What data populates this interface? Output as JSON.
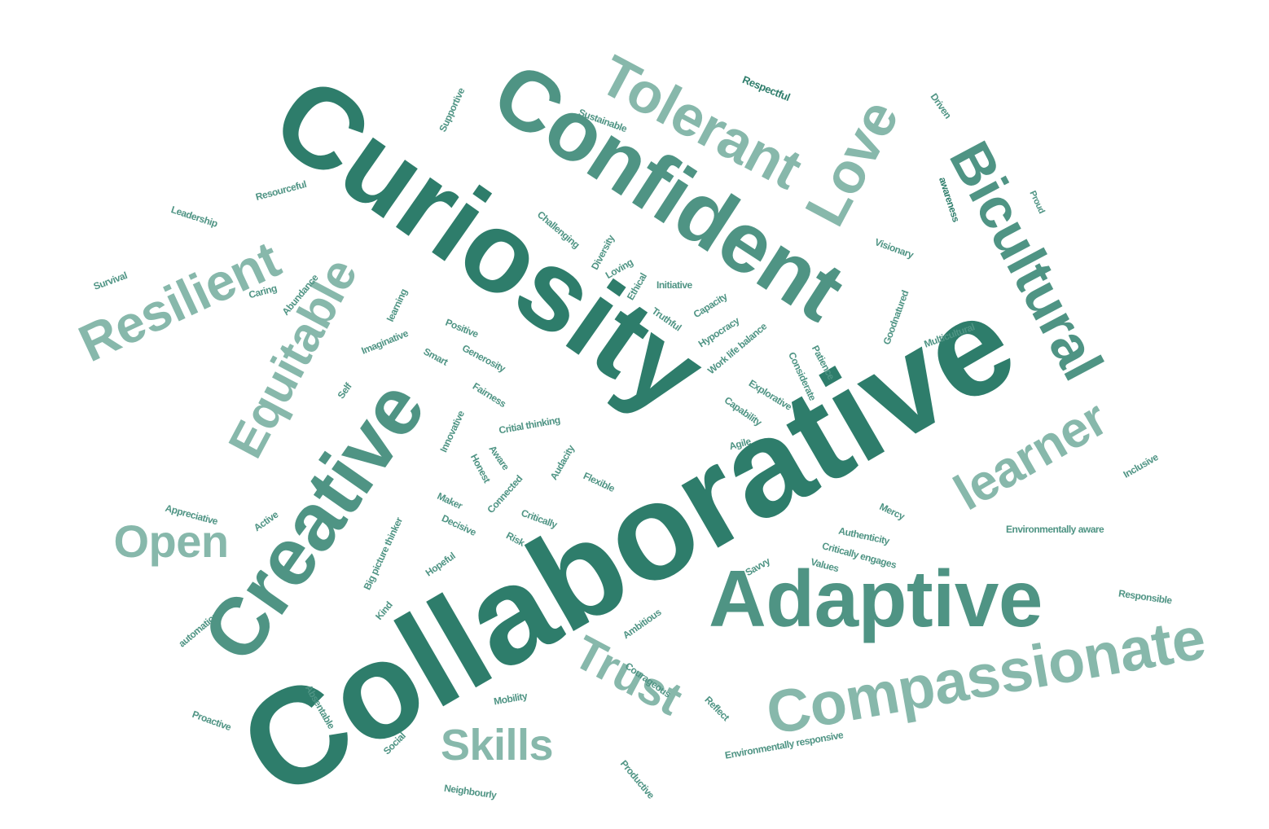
{
  "palette": {
    "dark": "#2e7d6b",
    "mid": "#4f9484",
    "light": "#87b8ab"
  },
  "words": [
    {
      "text": "Collaborative",
      "tone": "dark"
    },
    {
      "text": "Curiosity",
      "tone": "dark"
    },
    {
      "text": "Confident",
      "tone": "mid"
    },
    {
      "text": "Adaptive",
      "tone": "mid"
    },
    {
      "text": "Creative",
      "tone": "mid"
    },
    {
      "text": "Compassionate",
      "tone": "light"
    },
    {
      "text": "Bicultural",
      "tone": "mid"
    },
    {
      "text": "Tolerant",
      "tone": "light"
    },
    {
      "text": "Resilient",
      "tone": "light"
    },
    {
      "text": "Equitable",
      "tone": "light"
    },
    {
      "text": "learner",
      "tone": "light"
    },
    {
      "text": "Trust",
      "tone": "light"
    },
    {
      "text": "Skills",
      "tone": "light"
    },
    {
      "text": "Open",
      "tone": "light"
    },
    {
      "text": "Love",
      "tone": "light"
    },
    {
      "text": "Respectful",
      "tone": "dark"
    },
    {
      "text": "Supportive",
      "tone": "mid"
    },
    {
      "text": "Sustainable",
      "tone": "mid"
    },
    {
      "text": "Driven",
      "tone": "mid"
    },
    {
      "text": "awareness",
      "tone": "dark"
    },
    {
      "text": "Proud",
      "tone": "mid"
    },
    {
      "text": "Resourceful",
      "tone": "mid"
    },
    {
      "text": "Leadership",
      "tone": "mid"
    },
    {
      "text": "Challenging",
      "tone": "mid"
    },
    {
      "text": "Diversity",
      "tone": "mid"
    },
    {
      "text": "Visionary",
      "tone": "mid"
    },
    {
      "text": "Survival",
      "tone": "mid"
    },
    {
      "text": "Caring",
      "tone": "mid"
    },
    {
      "text": "Abundance",
      "tone": "mid"
    },
    {
      "text": "learning",
      "tone": "mid"
    },
    {
      "text": "Loving",
      "tone": "mid"
    },
    {
      "text": "Ethical",
      "tone": "mid"
    },
    {
      "text": "Initiative",
      "tone": "mid"
    },
    {
      "text": "Goodnatured",
      "tone": "mid"
    },
    {
      "text": "Truthful",
      "tone": "mid"
    },
    {
      "text": "Capacity",
      "tone": "mid"
    },
    {
      "text": "Hypocracy",
      "tone": "mid"
    },
    {
      "text": "Work life balance",
      "tone": "mid"
    },
    {
      "text": "Multicultural",
      "tone": "mid"
    },
    {
      "text": "Imaginative",
      "tone": "mid"
    },
    {
      "text": "Positive",
      "tone": "mid"
    },
    {
      "text": "Smart",
      "tone": "mid"
    },
    {
      "text": "Generosity",
      "tone": "mid"
    },
    {
      "text": "Fairness",
      "tone": "mid"
    },
    {
      "text": "Self",
      "tone": "mid"
    },
    {
      "text": "Patience",
      "tone": "mid"
    },
    {
      "text": "Considerate",
      "tone": "mid"
    },
    {
      "text": "Explorative",
      "tone": "mid"
    },
    {
      "text": "Capability",
      "tone": "mid"
    },
    {
      "text": "Innovative",
      "tone": "mid"
    },
    {
      "text": "Critial thinking",
      "tone": "mid"
    },
    {
      "text": "Aware",
      "tone": "mid"
    },
    {
      "text": "Honest",
      "tone": "mid"
    },
    {
      "text": "Audacity",
      "tone": "mid"
    },
    {
      "text": "Agile",
      "tone": "mid"
    },
    {
      "text": "Inclusive",
      "tone": "mid"
    },
    {
      "text": "Flexible",
      "tone": "mid"
    },
    {
      "text": "Connected",
      "tone": "mid"
    },
    {
      "text": "Maker",
      "tone": "mid"
    },
    {
      "text": "Decisive",
      "tone": "mid"
    },
    {
      "text": "Critically",
      "tone": "mid"
    },
    {
      "text": "Risk",
      "tone": "mid"
    },
    {
      "text": "Mercy",
      "tone": "mid"
    },
    {
      "text": "Appreciative",
      "tone": "mid"
    },
    {
      "text": "Active",
      "tone": "mid"
    },
    {
      "text": "Big picture thinker",
      "tone": "mid"
    },
    {
      "text": "Authenticity",
      "tone": "mid"
    },
    {
      "text": "Critically engages",
      "tone": "mid"
    },
    {
      "text": "Environmentally aware",
      "tone": "mid"
    },
    {
      "text": "Values",
      "tone": "mid"
    },
    {
      "text": "Savvy",
      "tone": "mid"
    },
    {
      "text": "Hopeful",
      "tone": "mid"
    },
    {
      "text": "Kind",
      "tone": "mid"
    },
    {
      "text": "Responsible",
      "tone": "mid"
    },
    {
      "text": "Ambitious",
      "tone": "mid"
    },
    {
      "text": "automation",
      "tone": "mid"
    },
    {
      "text": "Courageous",
      "tone": "mid"
    },
    {
      "text": "Absentable",
      "tone": "mid"
    },
    {
      "text": "Mobility",
      "tone": "mid"
    },
    {
      "text": "Reflect",
      "tone": "mid"
    },
    {
      "text": "Proactive",
      "tone": "mid"
    },
    {
      "text": "Environmentally responsive",
      "tone": "mid"
    },
    {
      "text": "Social",
      "tone": "mid"
    },
    {
      "text": "Productive",
      "tone": "mid"
    },
    {
      "text": "Neighbourly",
      "tone": "mid"
    }
  ]
}
